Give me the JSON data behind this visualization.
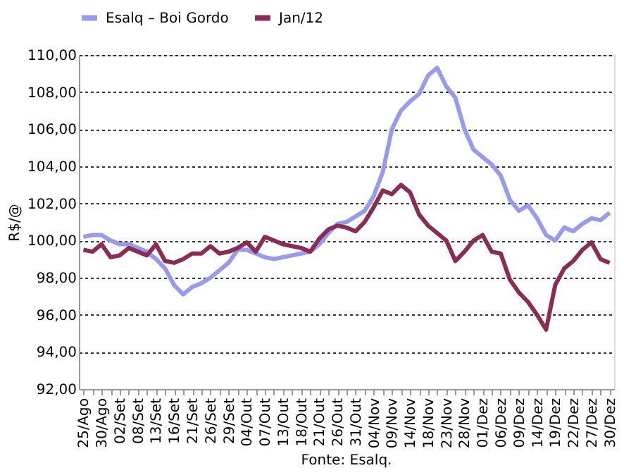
{
  "chart_data": {
    "type": "line",
    "ylabel": "R$/@",
    "annotations": [
      "Fonte: Esalq."
    ],
    "categories": [
      "25/Ago",
      null,
      "30/Ago",
      null,
      "02/Set",
      null,
      "08/Set",
      null,
      "13/Set",
      null,
      "16/Set",
      null,
      "21/Set",
      null,
      "26/Set",
      null,
      "29/Set",
      null,
      "04/Out",
      null,
      "07/Out",
      null,
      "13/Out",
      null,
      "18/Out",
      null,
      "21/Out",
      null,
      "26/Out",
      null,
      "31/Out",
      null,
      "04/Nov",
      null,
      "09/Nov",
      null,
      "14/Nov",
      null,
      "18/Nov",
      null,
      "23/Nov",
      null,
      "28/Nov",
      null,
      "01/Dez",
      null,
      "06/Dez",
      null,
      "09/Dez",
      null,
      "14/Dez",
      null,
      "19/Dez",
      null,
      "22/Dez",
      null,
      "27/Dez",
      null,
      "30/Dez"
    ],
    "series": [
      {
        "name": "Esalq – Boi Gordo",
        "color": "#9999ee",
        "values": [
          100.2,
          100.3,
          100.3,
          100.0,
          99.8,
          99.8,
          99.6,
          99.4,
          99.0,
          98.5,
          97.6,
          97.1,
          97.5,
          97.7,
          98.0,
          98.4,
          98.8,
          99.5,
          99.5,
          99.3,
          99.1,
          99.0,
          99.1,
          99.2,
          99.3,
          99.4,
          99.8,
          100.4,
          100.9,
          101.0,
          101.3,
          101.6,
          102.4,
          103.7,
          106.0,
          107.0,
          107.5,
          107.9,
          108.9,
          109.3,
          108.3,
          107.7,
          106.0,
          104.9,
          104.5,
          104.1,
          103.5,
          102.2,
          101.6,
          101.9,
          101.2,
          100.3,
          100.0,
          100.7,
          100.5,
          100.9,
          101.2,
          101.1,
          101.5
        ]
      },
      {
        "name": "Jan/12",
        "color": "#8b2c55",
        "values": [
          99.5,
          99.4,
          99.8,
          99.1,
          99.2,
          99.6,
          99.4,
          99.2,
          99.8,
          98.9,
          98.8,
          99.0,
          99.3,
          99.3,
          99.7,
          99.3,
          99.4,
          99.6,
          99.9,
          99.4,
          100.2,
          100.0,
          99.8,
          99.7,
          99.6,
          99.4,
          100.1,
          100.6,
          100.8,
          100.7,
          100.5,
          101.0,
          101.8,
          102.7,
          102.5,
          103.0,
          102.6,
          101.4,
          100.8,
          100.4,
          100.0,
          98.9,
          99.4,
          100.0,
          100.3,
          99.4,
          99.3,
          97.9,
          97.2,
          96.7,
          96.0,
          95.2,
          97.6,
          98.5,
          98.9,
          99.5,
          99.9,
          99.0,
          98.8
        ]
      }
    ],
    "ylim": [
      92,
      110
    ],
    "yticks": [
      {
        "value": 92,
        "label": "92,00"
      },
      {
        "value": 94,
        "label": "94,00"
      },
      {
        "value": 96,
        "label": "96,00"
      },
      {
        "value": 98,
        "label": "98,00"
      },
      {
        "value": 100,
        "label": "100,00"
      },
      {
        "value": 102,
        "label": "102,00"
      },
      {
        "value": 104,
        "label": "104,00"
      },
      {
        "value": 106,
        "label": "106,00"
      },
      {
        "value": 108,
        "label": "108,00"
      },
      {
        "value": 110,
        "label": "110,00"
      }
    ],
    "grid": "y",
    "legend": "top",
    "marker": "none",
    "line_style": "solid"
  }
}
